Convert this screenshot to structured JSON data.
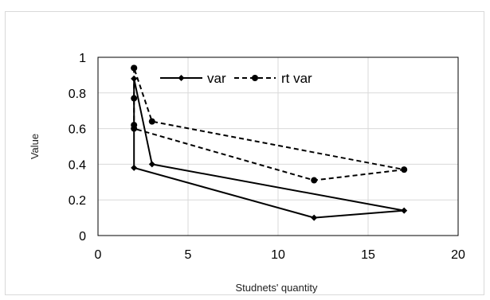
{
  "chart_data": {
    "type": "line",
    "xlabel": "Studnets' quantity",
    "ylabel": "Value",
    "xlim": [
      0,
      20
    ],
    "ylim": [
      0,
      1
    ],
    "xticks": [
      0,
      5,
      10,
      15,
      20
    ],
    "yticks": [
      0,
      0.2,
      0.4,
      0.6,
      0.8,
      1
    ],
    "xtick_labels": [
      "0",
      "5",
      "10",
      "15",
      "20"
    ],
    "ytick_labels": [
      "0",
      "0.2",
      "0.4",
      "0.6",
      "0.8",
      "1"
    ],
    "grid": true,
    "legend_position": "top-center",
    "series": [
      {
        "name": "var",
        "style": "solid",
        "marker": "diamond",
        "color": "#000000",
        "points": [
          {
            "x": 2,
            "y": 0.88
          },
          {
            "x": 2,
            "y": 0.38
          },
          {
            "x": 12,
            "y": 0.1
          },
          {
            "x": 17,
            "y": 0.14
          },
          {
            "x": 3,
            "y": 0.4
          },
          {
            "x": 2,
            "y": 0.88
          }
        ]
      },
      {
        "name": "rt var",
        "style": "dashed",
        "marker": "circle",
        "color": "#000000",
        "points": [
          {
            "x": 2,
            "y": 0.94
          },
          {
            "x": 2,
            "y": 0.77
          },
          {
            "x": 2,
            "y": 0.62
          },
          {
            "x": 2,
            "y": 0.6
          },
          {
            "x": 12,
            "y": 0.31
          },
          {
            "x": 17,
            "y": 0.37
          },
          {
            "x": 3,
            "y": 0.64
          },
          {
            "x": 2,
            "y": 0.94
          }
        ]
      }
    ]
  }
}
